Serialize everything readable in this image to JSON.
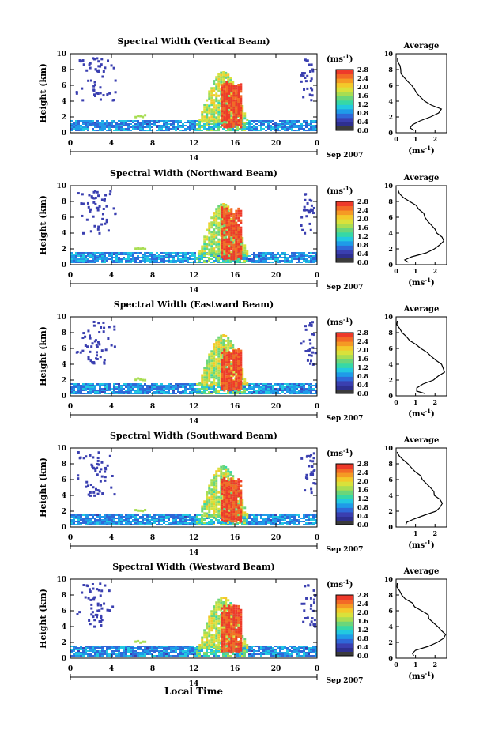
{
  "figure": {
    "date_main": "14",
    "date_side": "Sep 2007",
    "local_time_label": "Local Time",
    "cbar_unit": "(ms",
    "cbar_unit_exp": "-1",
    "cbar_unit_close": ")",
    "height_label": "Height (km)",
    "average_title": "Average",
    "average_unit": "(ms",
    "average_unit_exp": "-1",
    "average_unit_close": ")"
  },
  "colorscale": {
    "ticks": [
      "0.0",
      "0.4",
      "0.8",
      "1.2",
      "1.6",
      "2.0",
      "2.4",
      "2.8"
    ],
    "colors": [
      "#2e2f8f",
      "#3a3fb0",
      "#2f68d8",
      "#1f9be8",
      "#22c9e0",
      "#36d8a6",
      "#6bd67a",
      "#a8dd52",
      "#d9e13b",
      "#f3c92a",
      "#f59a24",
      "#f36a26",
      "#ee3a2a"
    ],
    "low_bin": "#3b3b3b"
  },
  "chart_data": [
    {
      "type": "heatmap",
      "title": "Spectral Width (Vertical Beam)",
      "xlabel": "",
      "ylabel": "Height (km)",
      "x_ticks": [
        "0",
        "4",
        "8",
        "12",
        "16",
        "20",
        "0"
      ],
      "y_ticks": [
        "0",
        "2",
        "4",
        "6",
        "8",
        "10"
      ],
      "xlim": [
        0,
        24
      ],
      "ylim": [
        0,
        10
      ],
      "colorbar": {
        "range": [
          0,
          2.8
        ],
        "unit": "ms-1"
      },
      "average_profile": {
        "title": "Average",
        "x_ticks": [
          "0",
          "1",
          "2"
        ],
        "x_range": [
          0,
          2.6
        ],
        "y_ticks": [
          "0",
          "2",
          "4",
          "6",
          "8",
          "10"
        ],
        "height_km": [
          0.3,
          0.6,
          1.0,
          1.5,
          2.0,
          2.5,
          3.0,
          3.5,
          4.0,
          4.5,
          5.0,
          5.5,
          6.0,
          6.5,
          7.0,
          7.5,
          8.0,
          8.5,
          9.0,
          9.5
        ],
        "width_ms": [
          0.9,
          0.7,
          0.8,
          1.2,
          1.8,
          2.2,
          2.3,
          1.8,
          1.5,
          1.3,
          1.1,
          0.9,
          0.8,
          0.6,
          0.4,
          0.3,
          0.2,
          0.15,
          0.1,
          0.05
        ]
      }
    },
    {
      "type": "heatmap",
      "title": "Spectral Width (Northward Beam)",
      "xlabel": "",
      "ylabel": "Height (km)",
      "x_ticks": [
        "0",
        "4",
        "8",
        "12",
        "16",
        "20",
        "0"
      ],
      "y_ticks": [
        "0",
        "2",
        "4",
        "6",
        "8",
        "10"
      ],
      "xlim": [
        0,
        24
      ],
      "ylim": [
        0,
        10
      ],
      "colorbar": {
        "range": [
          0,
          2.8
        ],
        "unit": "ms-1"
      },
      "average_profile": {
        "title": "Average",
        "x_ticks": [
          "0",
          "1",
          "2"
        ],
        "x_range": [
          0,
          2.6
        ],
        "y_ticks": [
          "0",
          "2",
          "4",
          "6",
          "8",
          "10"
        ],
        "height_km": [
          0.3,
          0.6,
          1.0,
          1.5,
          2.0,
          2.5,
          3.0,
          3.5,
          4.0,
          4.5,
          5.0,
          5.5,
          6.0,
          6.5,
          7.0,
          7.5,
          8.0,
          8.5,
          9.0,
          9.5
        ],
        "width_ms": [
          0.6,
          0.5,
          0.8,
          1.6,
          2.0,
          2.2,
          2.4,
          2.3,
          2.1,
          2.0,
          1.8,
          1.6,
          1.5,
          1.4,
          1.2,
          1.0,
          0.7,
          0.4,
          0.2,
          0.1
        ]
      }
    },
    {
      "type": "heatmap",
      "title": "Spectral Width (Eastward Beam)",
      "xlabel": "",
      "ylabel": "Height (km)",
      "x_ticks": [
        "0",
        "4",
        "8",
        "12",
        "16",
        "20",
        "0"
      ],
      "y_ticks": [
        "0",
        "2",
        "4",
        "6",
        "8",
        "10"
      ],
      "xlim": [
        0,
        24
      ],
      "ylim": [
        0,
        10
      ],
      "colorbar": {
        "range": [
          0,
          2.8
        ],
        "unit": "ms-1"
      },
      "average_profile": {
        "title": "Average",
        "x_ticks": [
          "0",
          "1",
          "2"
        ],
        "x_range": [
          0,
          2.6
        ],
        "y_ticks": [
          "0",
          "2",
          "4",
          "6",
          "8",
          "10"
        ],
        "height_km": [
          0.3,
          0.6,
          1.0,
          1.5,
          2.0,
          2.5,
          3.0,
          3.5,
          4.0,
          4.5,
          5.0,
          5.5,
          6.0,
          6.5,
          7.0,
          7.5,
          8.0,
          8.5,
          9.0,
          9.5
        ],
        "width_ms": [
          1.5,
          1.1,
          1.1,
          1.4,
          1.9,
          2.2,
          2.5,
          2.4,
          2.3,
          2.0,
          1.8,
          1.6,
          1.3,
          1.0,
          0.7,
          0.5,
          0.3,
          0.2,
          0.1,
          0.05
        ]
      }
    },
    {
      "type": "heatmap",
      "title": "Spectral Width (Southward Beam)",
      "xlabel": "",
      "ylabel": "Height (km)",
      "x_ticks": [
        "0",
        "4",
        "8",
        "12",
        "16",
        "20",
        "0"
      ],
      "y_ticks": [
        "0",
        "2",
        "4",
        "6",
        "8",
        "10"
      ],
      "xlim": [
        0,
        24
      ],
      "ylim": [
        0,
        10
      ],
      "colorbar": {
        "range": [
          0,
          2.8
        ],
        "unit": "ms-1"
      },
      "average_profile": {
        "title": "Average",
        "x_ticks": [
          "1",
          "2"
        ],
        "x_range": [
          0,
          2.6
        ],
        "y_ticks": [
          "0",
          "2",
          "4",
          "6",
          "8",
          "10"
        ],
        "height_km": [
          0.3,
          0.6,
          1.0,
          1.5,
          2.0,
          2.5,
          3.0,
          3.5,
          4.0,
          4.5,
          5.0,
          5.5,
          6.0,
          6.5,
          7.0,
          7.5,
          8.0,
          8.5,
          9.0,
          9.5
        ],
        "width_ms": [
          0.5,
          0.6,
          0.9,
          1.4,
          2.0,
          2.3,
          2.4,
          2.3,
          2.0,
          1.9,
          1.7,
          1.6,
          1.4,
          1.2,
          1.0,
          0.8,
          0.6,
          0.4,
          0.2,
          0.1
        ]
      }
    },
    {
      "type": "heatmap",
      "title": "Spectral Width (Westward Beam)",
      "xlabel": "Local Time",
      "ylabel": "Height (km)",
      "x_ticks": [
        "0",
        "4",
        "8",
        "12",
        "16",
        "20",
        "0"
      ],
      "y_ticks": [
        "0",
        "2",
        "4",
        "6",
        "8",
        "10"
      ],
      "xlim": [
        0,
        24
      ],
      "ylim": [
        0,
        10
      ],
      "colorbar": {
        "range": [
          0,
          2.8
        ],
        "unit": "ms-1"
      },
      "average_profile": {
        "title": "Average",
        "x_ticks": [
          "0",
          "1",
          "2"
        ],
        "x_range": [
          0,
          2.6
        ],
        "y_ticks": [
          "0",
          "2",
          "4",
          "6",
          "8",
          "10"
        ],
        "height_km": [
          0.3,
          0.6,
          1.0,
          1.5,
          2.0,
          2.5,
          3.0,
          3.5,
          4.0,
          4.5,
          5.0,
          5.5,
          6.0,
          6.5,
          7.0,
          7.5,
          8.0,
          8.5,
          9.0,
          9.5
        ],
        "width_ms": [
          0.9,
          0.8,
          1.0,
          1.6,
          2.1,
          2.4,
          2.5,
          2.3,
          2.1,
          1.9,
          1.7,
          1.6,
          1.3,
          1.0,
          0.8,
          0.5,
          0.3,
          0.2,
          0.1,
          0.05
        ]
      }
    }
  ]
}
